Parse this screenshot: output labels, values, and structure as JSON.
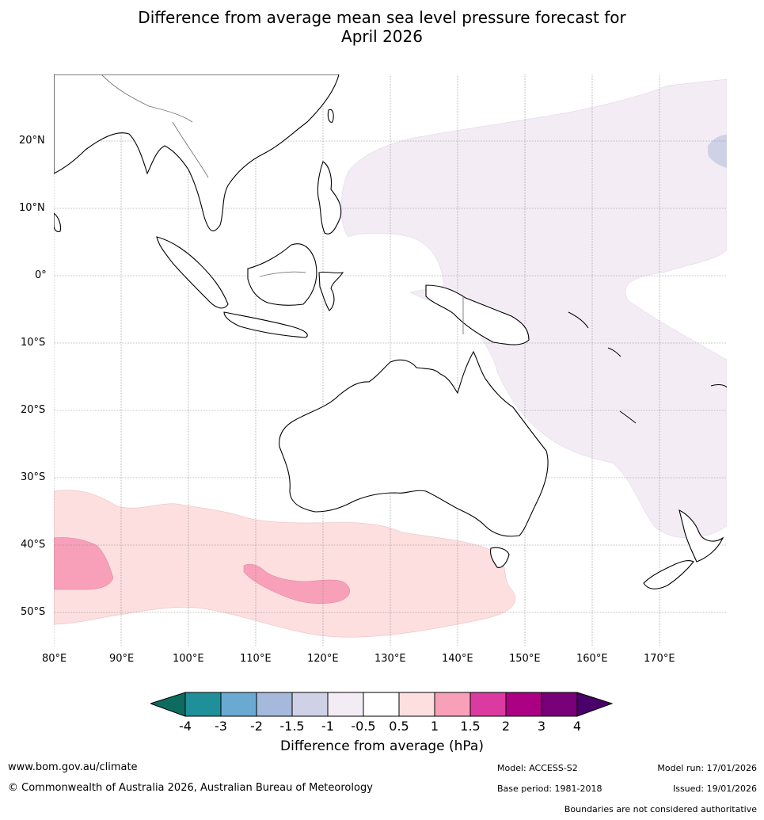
{
  "title_line1": "Difference from average mean sea level pressure forecast for",
  "title_line2": "April 2026",
  "lat_labels": [
    "20°N",
    "10°N",
    "0°",
    "10°S",
    "20°S",
    "30°S",
    "40°S",
    "50°S"
  ],
  "lon_labels": [
    "80°E",
    "90°E",
    "100°E",
    "110°E",
    "120°E",
    "130°E",
    "140°E",
    "150°E",
    "160°E",
    "170°E"
  ],
  "colorbar": {
    "ticks": [
      "-4",
      "-3",
      "-2",
      "-1.5",
      "-1",
      "-0.5",
      "0.5",
      "1",
      "1.5",
      "2",
      "3",
      "4"
    ],
    "colors": [
      "#0e6b5f",
      "#1f8f9a",
      "#6aaad2",
      "#a4b9db",
      "#cfd1e7",
      "#f3ecf5",
      "#ffffff",
      "#fddfdf",
      "#f8a0b9",
      "#db3ba0",
      "#ab0083",
      "#780078",
      "#4a0069"
    ],
    "label": "Difference from average (hPa)"
  },
  "footer": {
    "url": "www.bom.gov.au/climate",
    "copyright": "© Commonwealth of Australia 2026, Australian Bureau of Meteorology",
    "model": "Model: ACCESS-S2",
    "base_period": "Base period: 1981-2018",
    "model_run": "Model run: 17/01/2026",
    "issued": "Issued: 19/01/2026",
    "disclaimer": "Boundaries are not considered authoritative"
  },
  "map_extent": {
    "lon_min": 80,
    "lon_max": 180,
    "lat_min": -55,
    "lat_max": 30
  },
  "regions": [
    {
      "name": "lavender-anomaly-west-pacific",
      "level": "-1 to -0.5 hPa"
    },
    {
      "name": "pink-anomaly-southern-ocean",
      "level": "0.5 to 1 hPa"
    },
    {
      "name": "rose-anomaly-southern-ocean",
      "level": "1 to 1.5 hPa"
    }
  ]
}
